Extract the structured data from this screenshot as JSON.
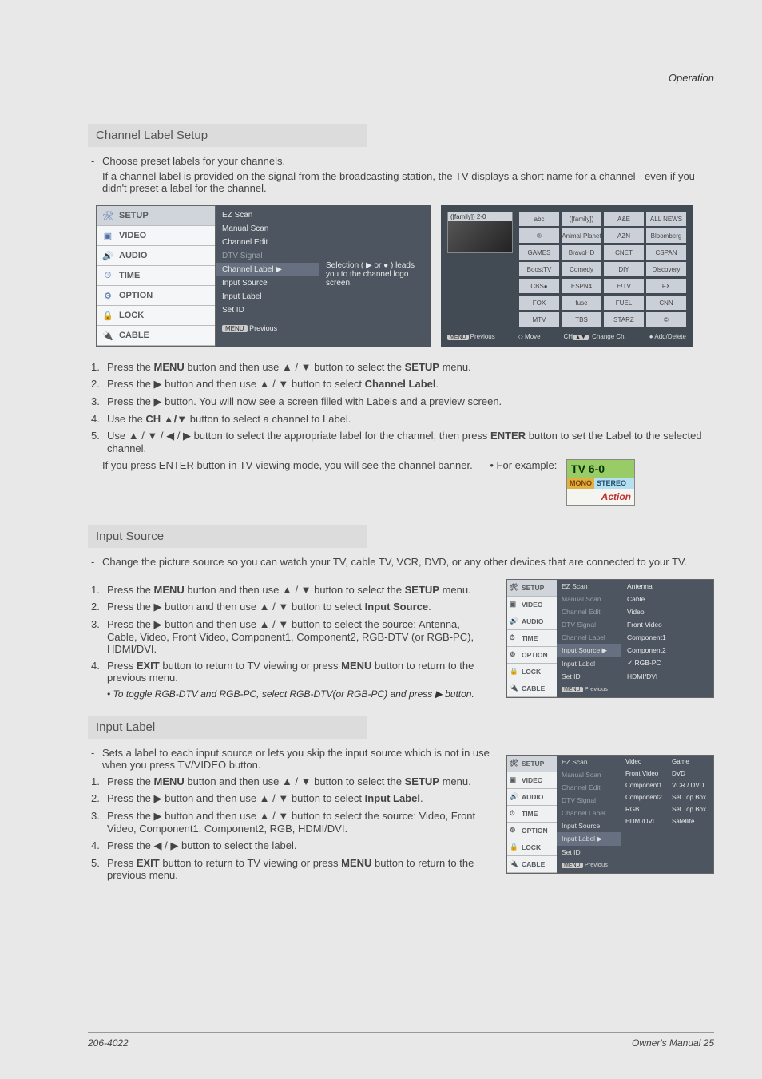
{
  "header": {
    "operation": "Operation"
  },
  "channelLabel": {
    "title": "Channel Label Setup",
    "intro": [
      "Choose preset labels for your channels.",
      "If a channel label is provided on the signal from the broadcasting station, the TV displays a short name for a channel - even if you didn't preset a label for the channel."
    ],
    "menuTabs": [
      "SETUP",
      "VIDEO",
      "AUDIO",
      "TIME",
      "OPTION",
      "LOCK",
      "CABLE"
    ],
    "menuItems": [
      {
        "l": "EZ Scan"
      },
      {
        "l": "Manual Scan"
      },
      {
        "l": "Channel Edit"
      },
      {
        "l": "DTV Signal",
        "dim": true
      },
      {
        "l": "Channel Label",
        "sel": true,
        "a": "▶"
      },
      {
        "l": "Input Source"
      },
      {
        "l": "Input Label"
      },
      {
        "l": "Set ID"
      }
    ],
    "menuPrev": "Previous",
    "hint": "Selection ( ▶ or ● ) leads you to the channel logo screen.",
    "preview": {
      "thumbBar": "([family])    2-0",
      "grid": [
        "abc",
        "([family])",
        "A&E",
        "ALL NEWS",
        "®",
        "Animal Planet",
        "AZN",
        "Bloomberg",
        "GAMES",
        "BravoHD",
        "CNET",
        "CSPAN",
        "BoostTV",
        "Comedy",
        "DIY",
        "Discovery",
        "CBS●",
        "ESPN4",
        "E!TV",
        "FX",
        "FOX",
        "fuse",
        "FUEL",
        "CNN",
        "MTV",
        "TBS",
        "STARZ",
        "©"
      ],
      "footer": {
        "prev": "Previous",
        "move": "Move",
        "chg": "Change Ch.",
        "add": "Add/Delete"
      }
    },
    "steps": [
      "Press the MENU button and then use ▲ / ▼ button to select the SETUP menu.",
      "Press the ▶ button and then use ▲ / ▼ button to select Channel Label.",
      "Press the ▶ button. You will now see a screen filled with Labels and a preview screen.",
      "Use the CH ▲/▼ button to select a channel to Label.",
      "Use ▲ / ▼ / ◀ / ▶ button to select the appropriate label for the channel, then press ENTER button to set the Label to the selected channel."
    ],
    "example": {
      "pre": "If you press  ENTER  button in TV viewing mode, you will see the channel banner.",
      "tag": "• For example:",
      "ch": "TV 6-0",
      "mono": "MONO",
      "stereo": "STEREO",
      "logo": "Action"
    }
  },
  "inputSource": {
    "title": "Input Source",
    "intro": "Change the picture source so you can watch your TV, cable TV, VCR, DVD, or any other devices that are connected to your TV.",
    "steps": [
      "Press the MENU button and then use ▲ / ▼ button to select the SETUP menu.",
      "Press the ▶ button and then use ▲ / ▼ button to select Input Source.",
      "Press the ▶ button and then use ▲ / ▼ button to select the source: Antenna, Cable, Video, Front Video, Component1, Component2, RGB-DTV (or RGB-PC), HDMI/DVI.",
      "Press EXIT button to return to TV viewing or press MENU button to return to the previous menu."
    ],
    "note": "• To toggle RGB-DTV and RGB-PC, select RGB-DTV(or RGB-PC) and press ▶ button.",
    "menuItems": [
      {
        "l": "EZ Scan"
      },
      {
        "l": "Manual Scan",
        "dim": true
      },
      {
        "l": "Channel Edit",
        "dim": true
      },
      {
        "l": "DTV Signal",
        "dim": true
      },
      {
        "l": "Channel Label",
        "dim": true
      },
      {
        "l": "Input Source",
        "sel": true,
        "a": "▶"
      },
      {
        "l": "Input Label"
      },
      {
        "l": "Set ID"
      }
    ],
    "vals": [
      "Antenna",
      "Cable",
      "Video",
      "Front Video",
      "Component1",
      "Component2",
      "RGB-PC",
      "HDMI/DVI"
    ],
    "check": "RGB-PC"
  },
  "inputLabel": {
    "title": "Input Label",
    "intro": "Sets a label to each input source or lets you skip the input source which is not in use when you press TV/VIDEO button.",
    "steps": [
      "Press the MENU button and then use ▲ / ▼ button to select the SETUP menu.",
      "Press the ▶ button and then use ▲ / ▼ button to select Input Label.",
      "Press the ▶ button and then use ▲ / ▼ button to select the source: Video, Front Video, Component1, Component2, RGB, HDMI/DVI.",
      "Press the ◀ / ▶ button to select the label.",
      "Press EXIT button to return to TV viewing or press MENU button to return to the previous menu."
    ],
    "menuItems": [
      {
        "l": "EZ Scan"
      },
      {
        "l": "Manual Scan",
        "dim": true
      },
      {
        "l": "Channel Edit",
        "dim": true
      },
      {
        "l": "DTV Signal",
        "dim": true
      },
      {
        "l": "Channel Label",
        "dim": true
      },
      {
        "l": "Input Source"
      },
      {
        "l": "Input Label",
        "sel": true,
        "a": "▶"
      },
      {
        "l": "Set ID"
      }
    ],
    "vals2": {
      "c1": [
        "Video",
        "Front Video",
        "Component1",
        "Component2",
        "RGB",
        "HDMI/DVI"
      ],
      "c2": [
        "Game",
        "DVD",
        "VCR / DVD",
        "Set Top Box",
        "Set Top Box",
        "Satellite"
      ]
    }
  },
  "footer": {
    "left": "206-4022",
    "right": "Owner's Manual  25"
  }
}
